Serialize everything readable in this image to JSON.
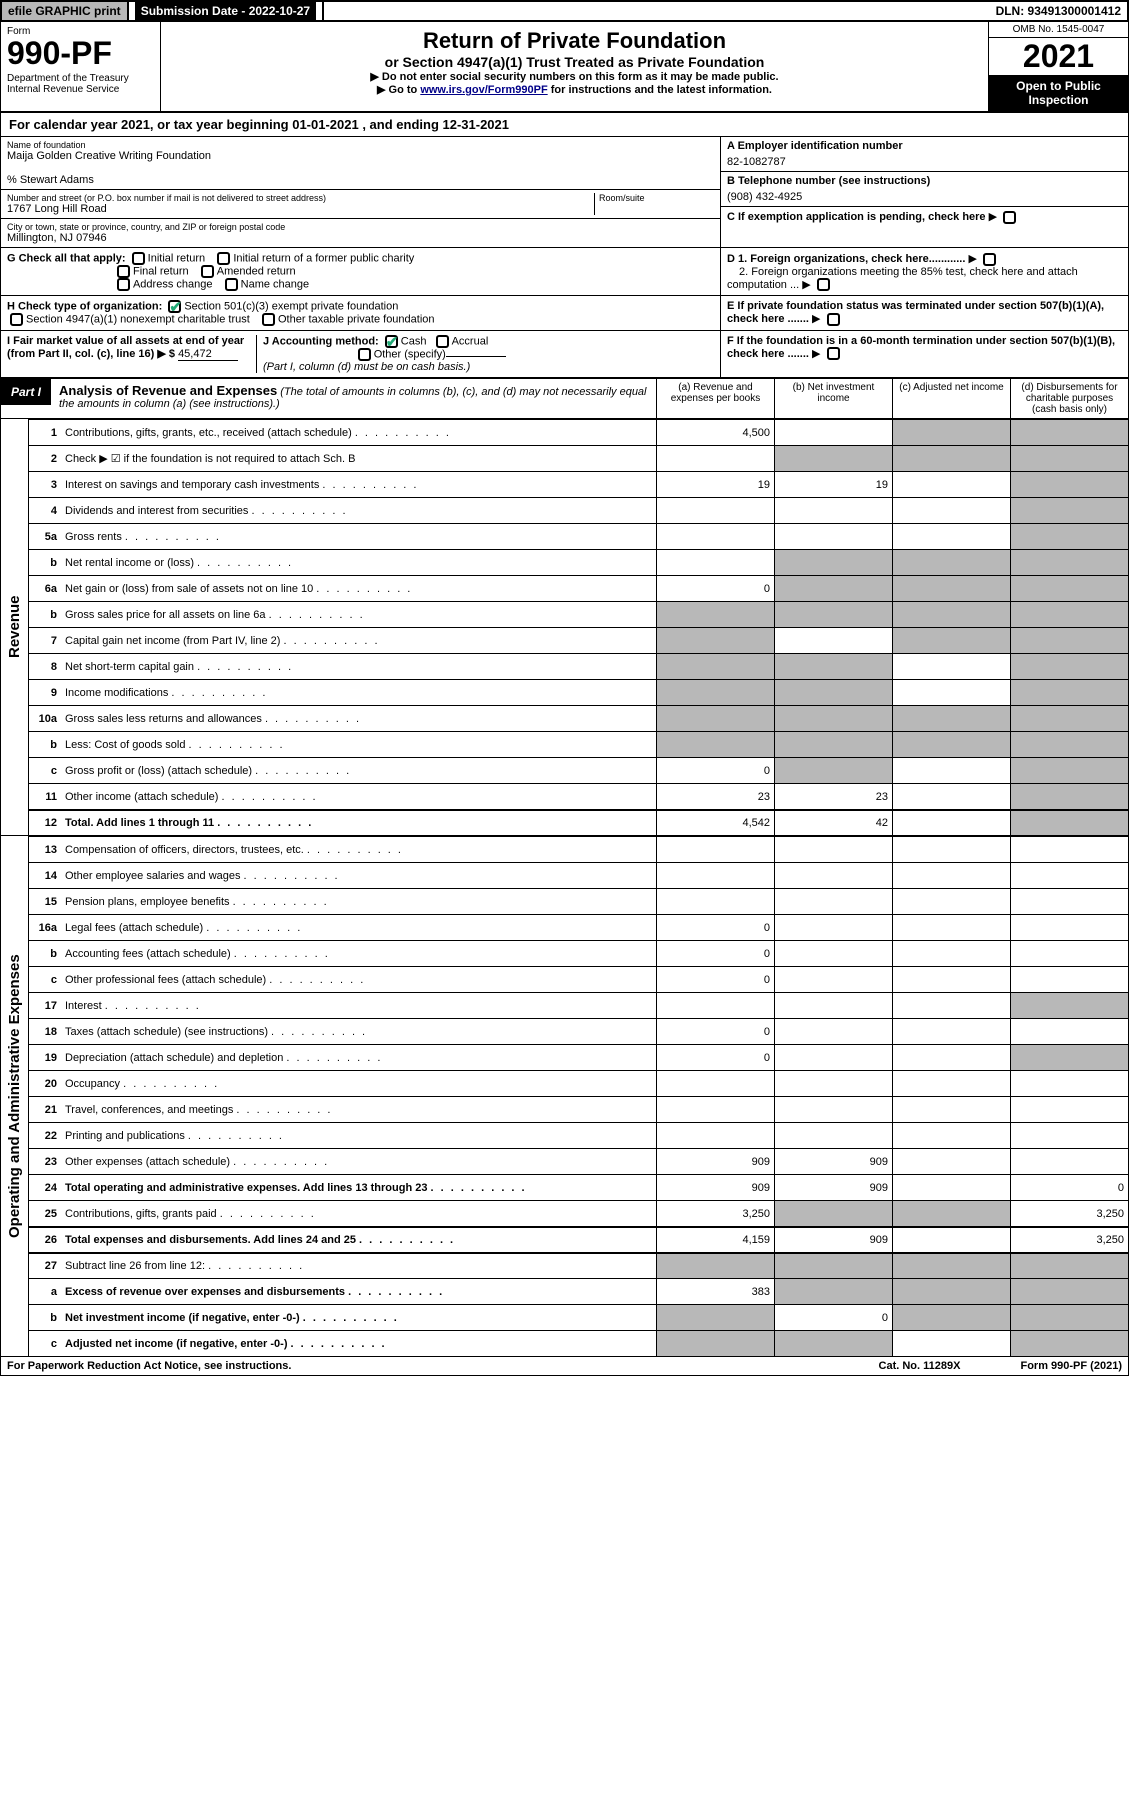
{
  "top": {
    "efile": "efile GRAPHIC print",
    "sub_label": "Submission Date - 2022-10-27",
    "dln": "DLN: 93491300001412"
  },
  "header": {
    "form_label": "Form",
    "form_num": "990-PF",
    "dept": "Department of the Treasury\nInternal Revenue Service",
    "title": "Return of Private Foundation",
    "subtitle": "or Section 4947(a)(1) Trust Treated as Private Foundation",
    "note1": "▶ Do not enter social security numbers on this form as it may be made public.",
    "note2_pre": "▶ Go to ",
    "note2_link": "www.irs.gov/Form990PF",
    "note2_post": " for instructions and the latest information.",
    "omb": "OMB No. 1545-0047",
    "year": "2021",
    "open": "Open to Public Inspection"
  },
  "cal": "For calendar year 2021, or tax year beginning 01-01-2021                        , and ending 12-31-2021",
  "info": {
    "name_label": "Name of foundation",
    "name": "Maija Golden Creative Writing Foundation",
    "care": "% Stewart Adams",
    "addr_label": "Number and street (or P.O. box number if mail is not delivered to street address)",
    "room_label": "Room/suite",
    "addr": "1767 Long Hill Road",
    "city_label": "City or town, state or province, country, and ZIP or foreign postal code",
    "city": "Millington, NJ  07946",
    "ein_label": "A Employer identification number",
    "ein": "82-1082787",
    "phone_label": "B Telephone number (see instructions)",
    "phone": "(908) 432-4925",
    "c": "C If exemption application is pending, check here",
    "d1": "D 1. Foreign organizations, check here............",
    "d2": "2. Foreign organizations meeting the 85% test, check here and attach computation ...",
    "e": "E If private foundation status was terminated under section 507(b)(1)(A), check here .......",
    "f": "F If the foundation is in a 60-month termination under section 507(b)(1)(B), check here .......",
    "g_label": "G Check all that apply:",
    "g_opts": [
      "Initial return",
      "Initial return of a former public charity",
      "Final return",
      "Amended return",
      "Address change",
      "Name change"
    ],
    "h_label": "H Check type of organization:",
    "h_opts": [
      "Section 501(c)(3) exempt private foundation",
      "Section 4947(a)(1) nonexempt charitable trust",
      "Other taxable private foundation"
    ],
    "i_label": "I Fair market value of all assets at end of year (from Part II, col. (c), line 16) ▶ $",
    "i_val": "45,472",
    "j_label": "J Accounting method:",
    "j_opts": [
      "Cash",
      "Accrual",
      "Other (specify)"
    ],
    "j_note": "(Part I, column (d) must be on cash basis.)"
  },
  "part1": {
    "label": "Part I",
    "title": "Analysis of Revenue and Expenses",
    "sub": "(The total of amounts in columns (b), (c), and (d) may not necessarily equal the amounts in column (a) (see instructions).)",
    "cols": [
      "(a) Revenue and expenses per books",
      "(b) Net investment income",
      "(c) Adjusted net income",
      "(d) Disbursements for charitable purposes (cash basis only)"
    ]
  },
  "revenue_label": "Revenue",
  "expenses_label": "Operating and Administrative Expenses",
  "rows": [
    {
      "n": "1",
      "d": "Contributions, gifts, grants, etc., received (attach schedule)",
      "a": "4,500",
      "b": "",
      "c": "shaded",
      "dd": "shaded"
    },
    {
      "n": "2",
      "d": "Check ▶ ☑ if the foundation is not required to attach Sch. B",
      "a": "",
      "b": "shaded",
      "c": "shaded",
      "dd": "shaded",
      "nodots": true
    },
    {
      "n": "3",
      "d": "Interest on savings and temporary cash investments",
      "a": "19",
      "b": "19",
      "c": "",
      "dd": "shaded"
    },
    {
      "n": "4",
      "d": "Dividends and interest from securities",
      "a": "",
      "b": "",
      "c": "",
      "dd": "shaded"
    },
    {
      "n": "5a",
      "d": "Gross rents",
      "a": "",
      "b": "",
      "c": "",
      "dd": "shaded"
    },
    {
      "n": "b",
      "d": "Net rental income or (loss)",
      "a": "",
      "b": "shaded",
      "c": "shaded",
      "dd": "shaded"
    },
    {
      "n": "6a",
      "d": "Net gain or (loss) from sale of assets not on line 10",
      "a": "0",
      "b": "shaded",
      "c": "shaded",
      "dd": "shaded"
    },
    {
      "n": "b",
      "d": "Gross sales price for all assets on line 6a",
      "a": "shaded",
      "b": "shaded",
      "c": "shaded",
      "dd": "shaded"
    },
    {
      "n": "7",
      "d": "Capital gain net income (from Part IV, line 2)",
      "a": "shaded",
      "b": "",
      "c": "shaded",
      "dd": "shaded"
    },
    {
      "n": "8",
      "d": "Net short-term capital gain",
      "a": "shaded",
      "b": "shaded",
      "c": "",
      "dd": "shaded"
    },
    {
      "n": "9",
      "d": "Income modifications",
      "a": "shaded",
      "b": "shaded",
      "c": "",
      "dd": "shaded"
    },
    {
      "n": "10a",
      "d": "Gross sales less returns and allowances",
      "a": "shaded",
      "b": "shaded",
      "c": "shaded",
      "dd": "shaded"
    },
    {
      "n": "b",
      "d": "Less: Cost of goods sold",
      "a": "shaded",
      "b": "shaded",
      "c": "shaded",
      "dd": "shaded"
    },
    {
      "n": "c",
      "d": "Gross profit or (loss) (attach schedule)",
      "a": "0",
      "b": "shaded",
      "c": "",
      "dd": "shaded"
    },
    {
      "n": "11",
      "d": "Other income (attach schedule)",
      "a": "23",
      "b": "23",
      "c": "",
      "dd": "shaded"
    },
    {
      "n": "12",
      "d": "Total. Add lines 1 through 11",
      "a": "4,542",
      "b": "42",
      "c": "",
      "dd": "shaded",
      "bold": true,
      "thick": true
    }
  ],
  "exp_rows": [
    {
      "n": "13",
      "d": "Compensation of officers, directors, trustees, etc.",
      "a": "",
      "b": "",
      "c": "",
      "dd": ""
    },
    {
      "n": "14",
      "d": "Other employee salaries and wages",
      "a": "",
      "b": "",
      "c": "",
      "dd": ""
    },
    {
      "n": "15",
      "d": "Pension plans, employee benefits",
      "a": "",
      "b": "",
      "c": "",
      "dd": ""
    },
    {
      "n": "16a",
      "d": "Legal fees (attach schedule)",
      "a": "0",
      "b": "",
      "c": "",
      "dd": ""
    },
    {
      "n": "b",
      "d": "Accounting fees (attach schedule)",
      "a": "0",
      "b": "",
      "c": "",
      "dd": ""
    },
    {
      "n": "c",
      "d": "Other professional fees (attach schedule)",
      "a": "0",
      "b": "",
      "c": "",
      "dd": ""
    },
    {
      "n": "17",
      "d": "Interest",
      "a": "",
      "b": "",
      "c": "",
      "dd": "shaded"
    },
    {
      "n": "18",
      "d": "Taxes (attach schedule) (see instructions)",
      "a": "0",
      "b": "",
      "c": "",
      "dd": ""
    },
    {
      "n": "19",
      "d": "Depreciation (attach schedule) and depletion",
      "a": "0",
      "b": "",
      "c": "",
      "dd": "shaded"
    },
    {
      "n": "20",
      "d": "Occupancy",
      "a": "",
      "b": "",
      "c": "",
      "dd": ""
    },
    {
      "n": "21",
      "d": "Travel, conferences, and meetings",
      "a": "",
      "b": "",
      "c": "",
      "dd": ""
    },
    {
      "n": "22",
      "d": "Printing and publications",
      "a": "",
      "b": "",
      "c": "",
      "dd": ""
    },
    {
      "n": "23",
      "d": "Other expenses (attach schedule)",
      "a": "909",
      "b": "909",
      "c": "",
      "dd": ""
    },
    {
      "n": "24",
      "d": "Total operating and administrative expenses. Add lines 13 through 23",
      "a": "909",
      "b": "909",
      "c": "",
      "dd": "0",
      "bold": true
    },
    {
      "n": "25",
      "d": "Contributions, gifts, grants paid",
      "a": "3,250",
      "b": "shaded",
      "c": "shaded",
      "dd": "3,250"
    },
    {
      "n": "26",
      "d": "Total expenses and disbursements. Add lines 24 and 25",
      "a": "4,159",
      "b": "909",
      "c": "",
      "dd": "3,250",
      "bold": true,
      "thick": true
    },
    {
      "n": "27",
      "d": "Subtract line 26 from line 12:",
      "a": "shaded",
      "b": "shaded",
      "c": "shaded",
      "dd": "shaded",
      "thick": true
    },
    {
      "n": "a",
      "d": "Excess of revenue over expenses and disbursements",
      "a": "383",
      "b": "shaded",
      "c": "shaded",
      "dd": "shaded",
      "bold": true
    },
    {
      "n": "b",
      "d": "Net investment income (if negative, enter -0-)",
      "a": "shaded",
      "b": "0",
      "c": "shaded",
      "dd": "shaded",
      "bold": true
    },
    {
      "n": "c",
      "d": "Adjusted net income (if negative, enter -0-)",
      "a": "shaded",
      "b": "shaded",
      "c": "",
      "dd": "shaded",
      "bold": true
    }
  ],
  "footer": {
    "left": "For Paperwork Reduction Act Notice, see instructions.",
    "mid": "Cat. No. 11289X",
    "right": "Form 990-PF (2021)"
  }
}
